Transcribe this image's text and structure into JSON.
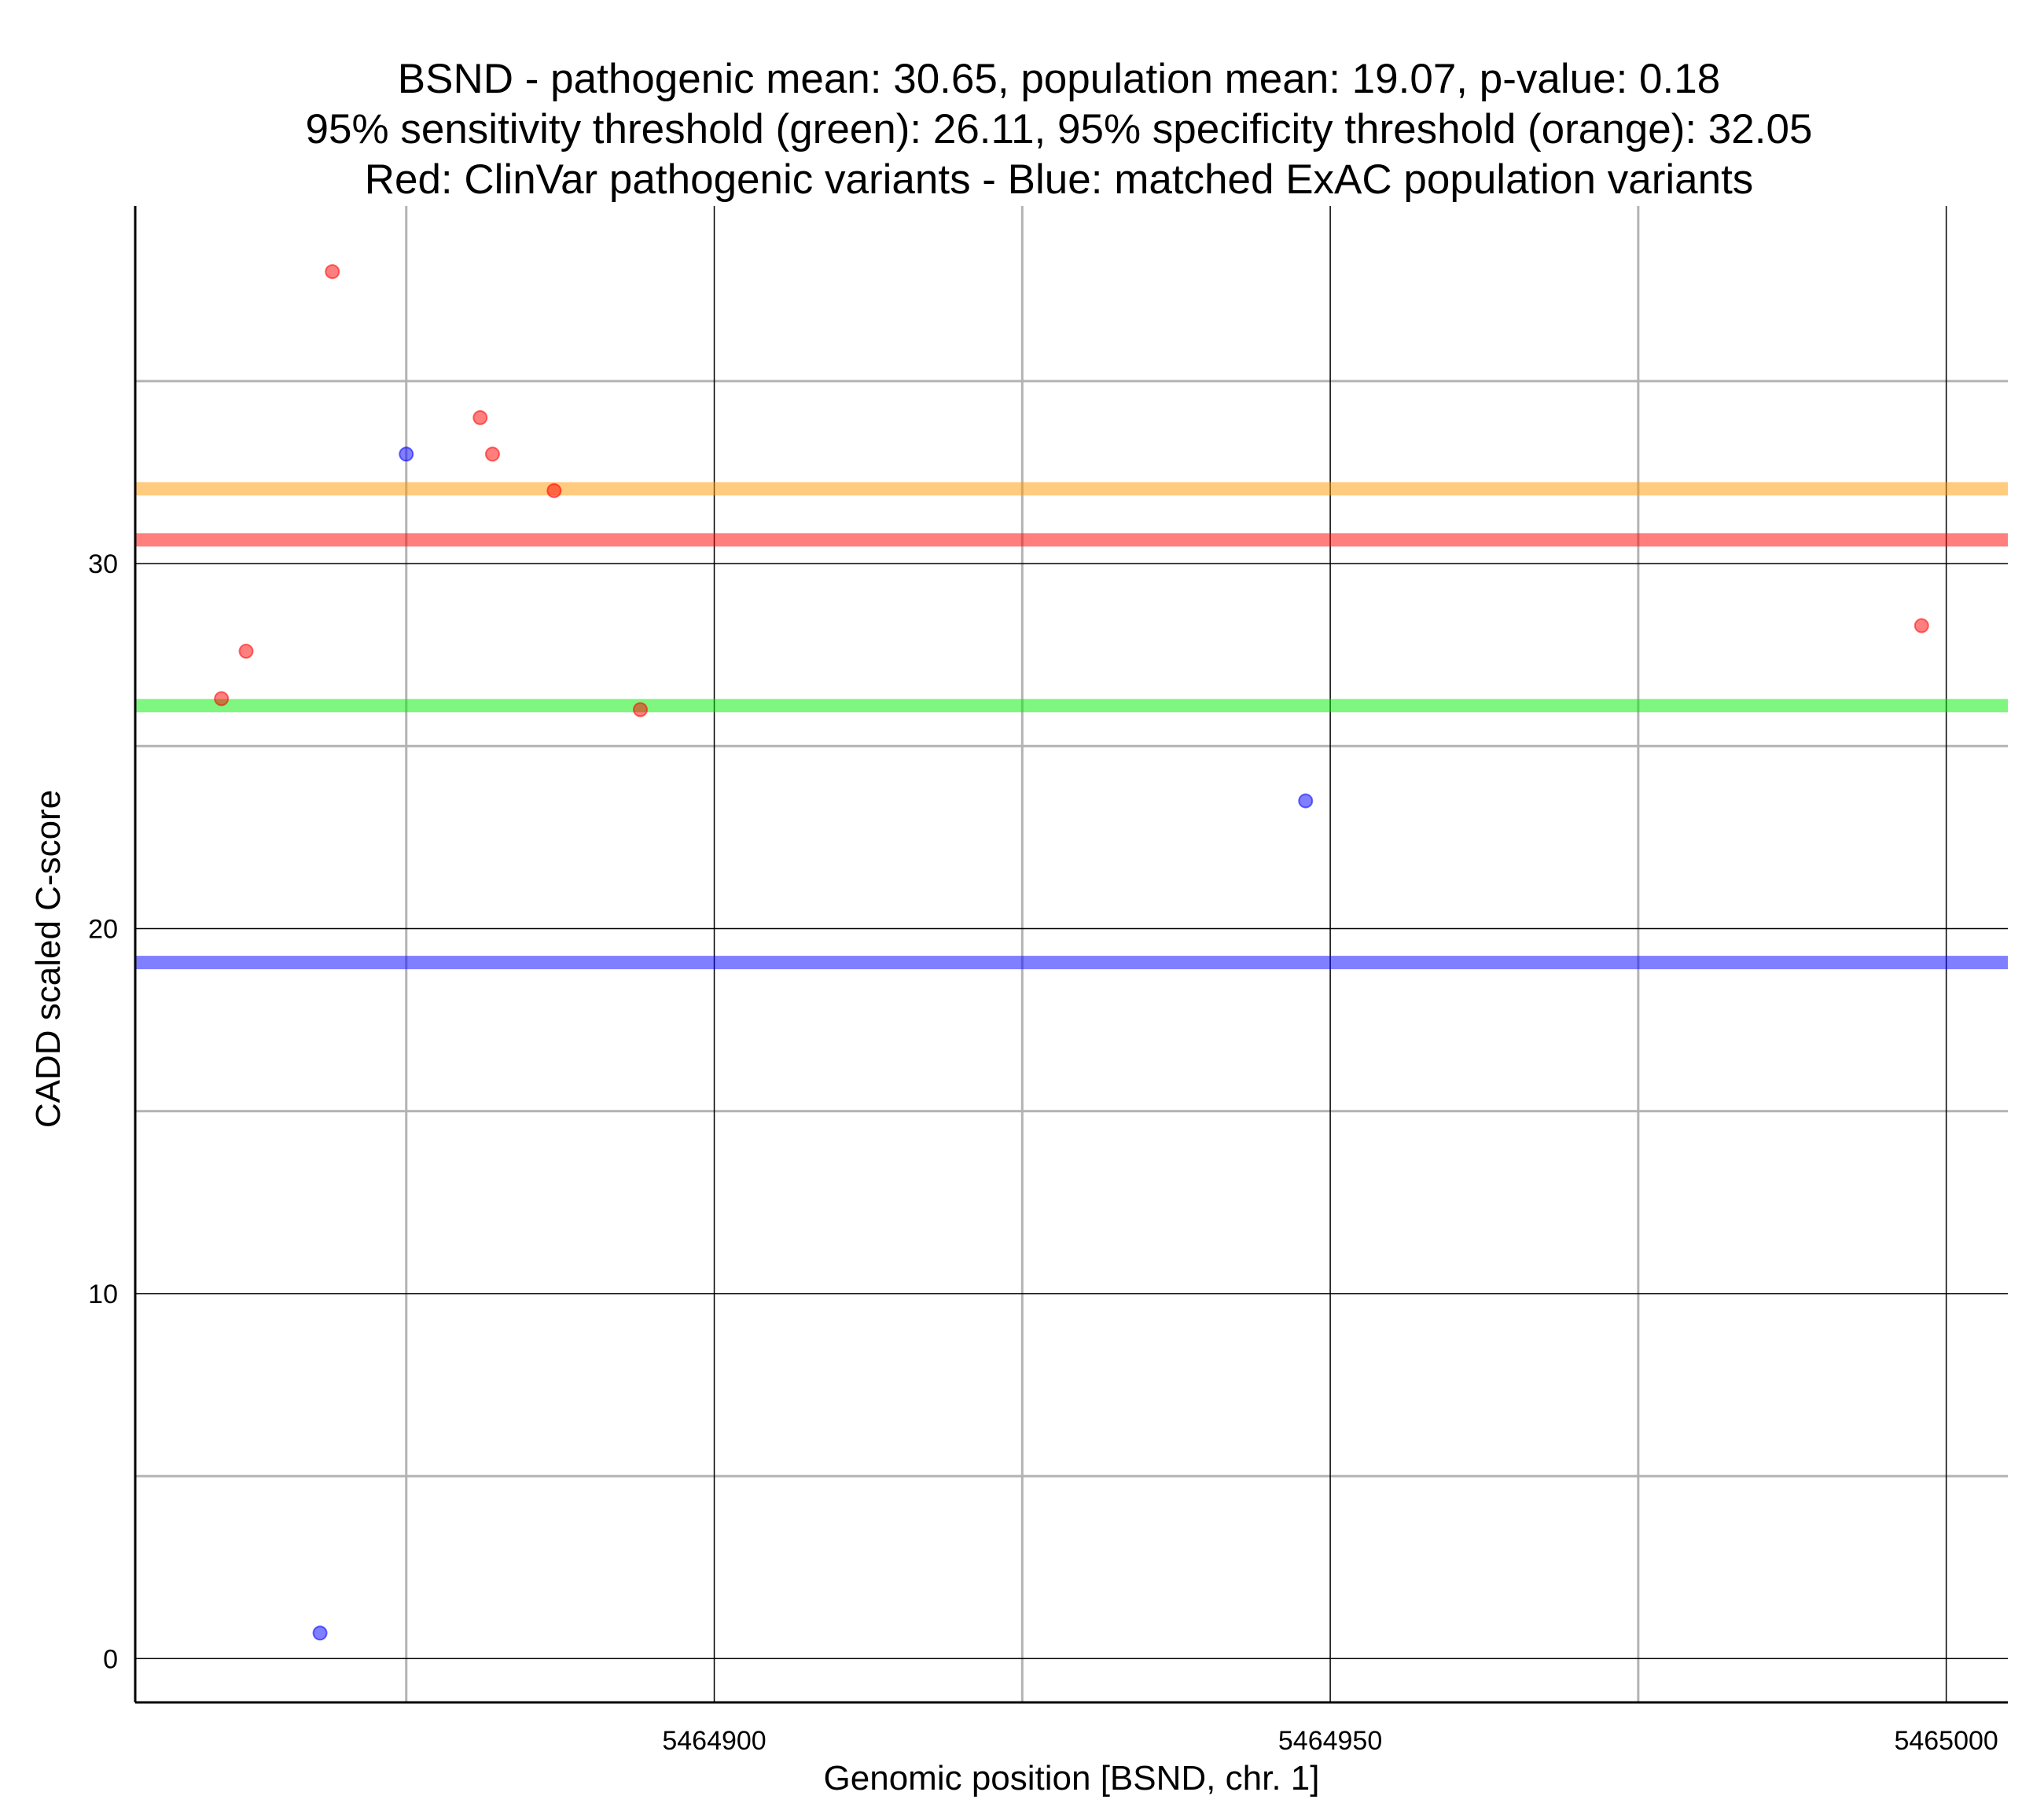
{
  "chart_data": {
    "type": "scatter",
    "title_lines": [
      "BSND - pathogenic mean: 30.65, population mean: 19.07, p-value: 0.18",
      "95% sensitivity threshold (green): 26.11, 95% specificity threshold (orange): 32.05",
      "Red: ClinVar pathogenic variants - Blue: matched ExAC population variants"
    ],
    "xlabel": "Genomic position [BSND, chr. 1]",
    "ylabel": "CADD scaled C-score",
    "xlim": [
      5464853,
      5465005
    ],
    "ylim": [
      -1.2,
      39.8
    ],
    "x_ticks": [
      {
        "value": 5464900,
        "label": "5464900"
      },
      {
        "value": 5464950,
        "label": "5464950"
      },
      {
        "value": 5465000,
        "label": "5465000"
      }
    ],
    "x_minor_gridlines": [
      5464875,
      5464925,
      5464975
    ],
    "y_ticks": [
      {
        "value": 0,
        "label": "0"
      },
      {
        "value": 10,
        "label": "10"
      },
      {
        "value": 20,
        "label": "20"
      },
      {
        "value": 30,
        "label": "30"
      }
    ],
    "y_minor_gridlines": [
      5,
      15,
      25,
      35
    ],
    "grid": true,
    "reference_lines": [
      {
        "name": "pathogenic mean",
        "y": 30.65,
        "color": "#ff0000"
      },
      {
        "name": "population mean",
        "y": 19.07,
        "color": "#0000ff"
      },
      {
        "name": "95% sensitivity threshold",
        "y": 26.11,
        "color": "#00ee00"
      },
      {
        "name": "95% specificity threshold",
        "y": 32.05,
        "color": "#ff9900"
      }
    ],
    "series": [
      {
        "color": "#ff0000",
        "points": [
          {
            "x": 5464860,
            "y": 26.3
          },
          {
            "x": 5464862,
            "y": 27.6
          },
          {
            "x": 5464869,
            "y": 38.0
          },
          {
            "x": 5464881,
            "y": 34.0
          },
          {
            "x": 5464882,
            "y": 33.0
          },
          {
            "x": 5464887,
            "y": 32.0
          },
          {
            "x": 5464894,
            "y": 26.0
          },
          {
            "x": 5464998,
            "y": 28.3
          }
        ]
      },
      {
        "color": "#0000ff",
        "points": [
          {
            "x": 5464868,
            "y": 0.7
          },
          {
            "x": 5464875,
            "y": 33.0
          },
          {
            "x": 5464948,
            "y": 23.5
          }
        ]
      }
    ]
  }
}
